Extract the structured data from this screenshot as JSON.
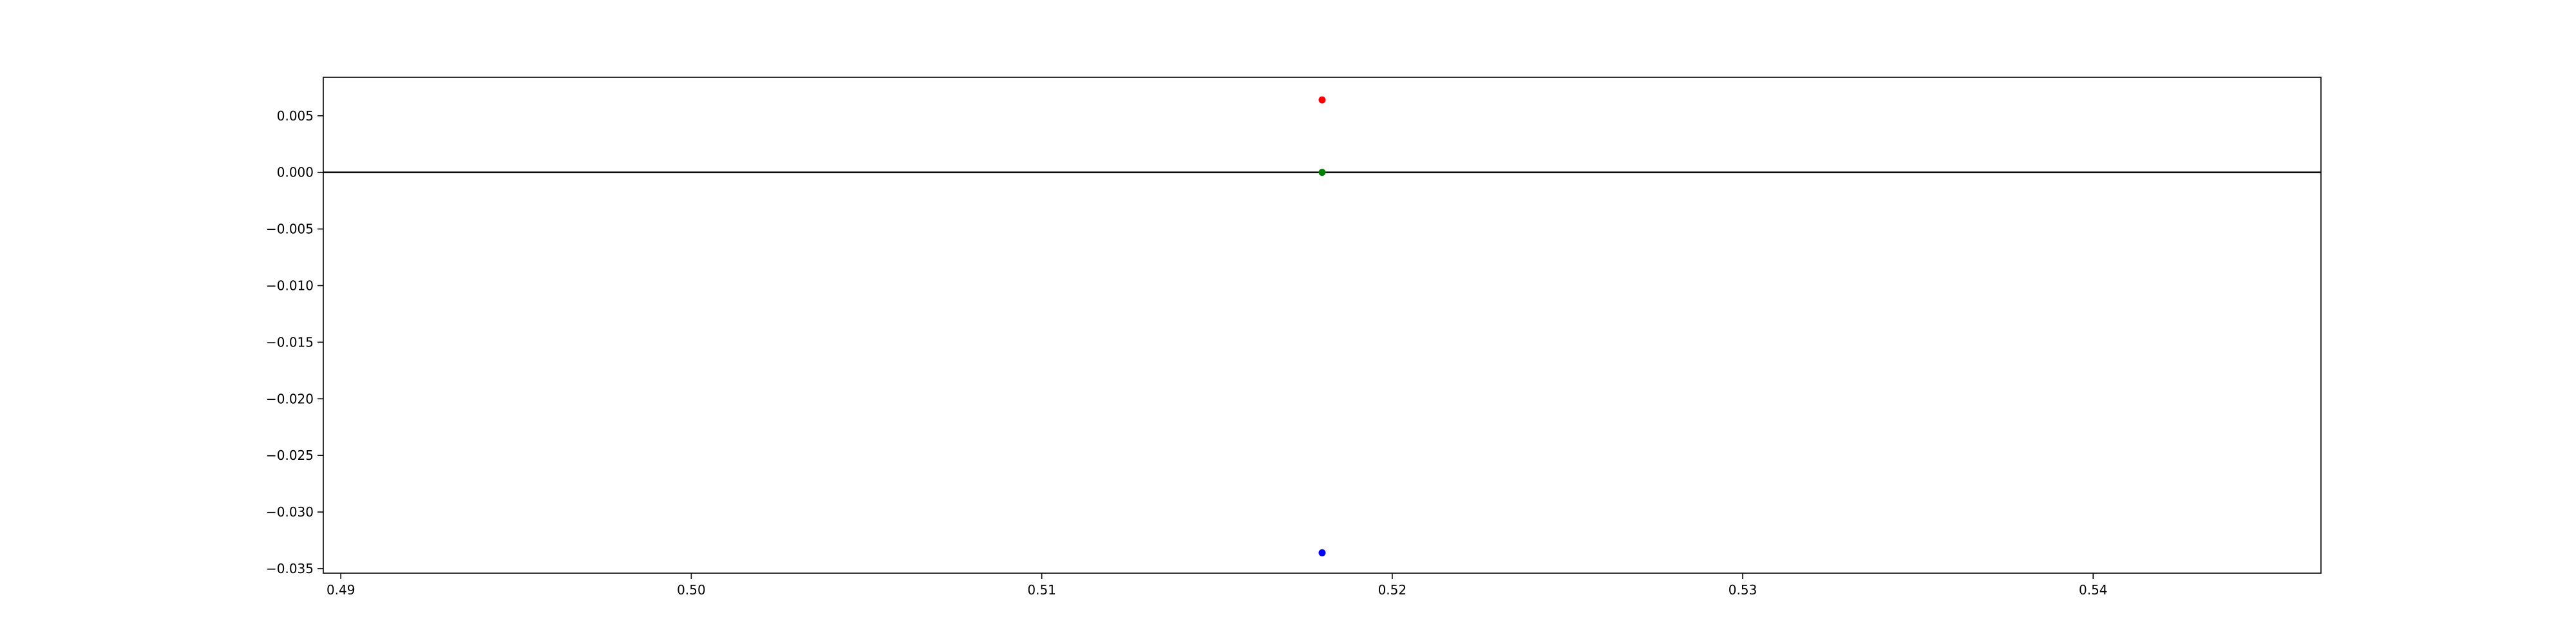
{
  "chart_data": {
    "type": "scatter",
    "title": "",
    "xlabel": "",
    "ylabel": "",
    "xlim": [
      0.4895,
      0.5465
    ],
    "ylim": [
      -0.0354,
      0.0084
    ],
    "grid": false,
    "legend": "none",
    "x_ticks": [
      {
        "value": 0.49,
        "label": "0.49"
      },
      {
        "value": 0.5,
        "label": "0.50"
      },
      {
        "value": 0.51,
        "label": "0.51"
      },
      {
        "value": 0.52,
        "label": "0.52"
      },
      {
        "value": 0.53,
        "label": "0.53"
      },
      {
        "value": 0.54,
        "label": "0.54"
      }
    ],
    "y_ticks": [
      {
        "value": 0.005,
        "label": "0.005"
      },
      {
        "value": 0.0,
        "label": "0.000"
      },
      {
        "value": -0.005,
        "label": "−0.005"
      },
      {
        "value": -0.01,
        "label": "−0.010"
      },
      {
        "value": -0.015,
        "label": "−0.015"
      },
      {
        "value": -0.02,
        "label": "−0.020"
      },
      {
        "value": -0.025,
        "label": "−0.025"
      },
      {
        "value": -0.03,
        "label": "−0.030"
      },
      {
        "value": -0.035,
        "label": "−0.035"
      }
    ],
    "hlines": [
      {
        "y": 0.0,
        "color": "#000000"
      }
    ],
    "points": [
      {
        "x": 0.518,
        "y": 0.0064,
        "color": "#ff0000"
      },
      {
        "x": 0.518,
        "y": 0.0,
        "color": "#008000"
      },
      {
        "x": 0.518,
        "y": -0.0336,
        "color": "#0000ff"
      }
    ]
  }
}
